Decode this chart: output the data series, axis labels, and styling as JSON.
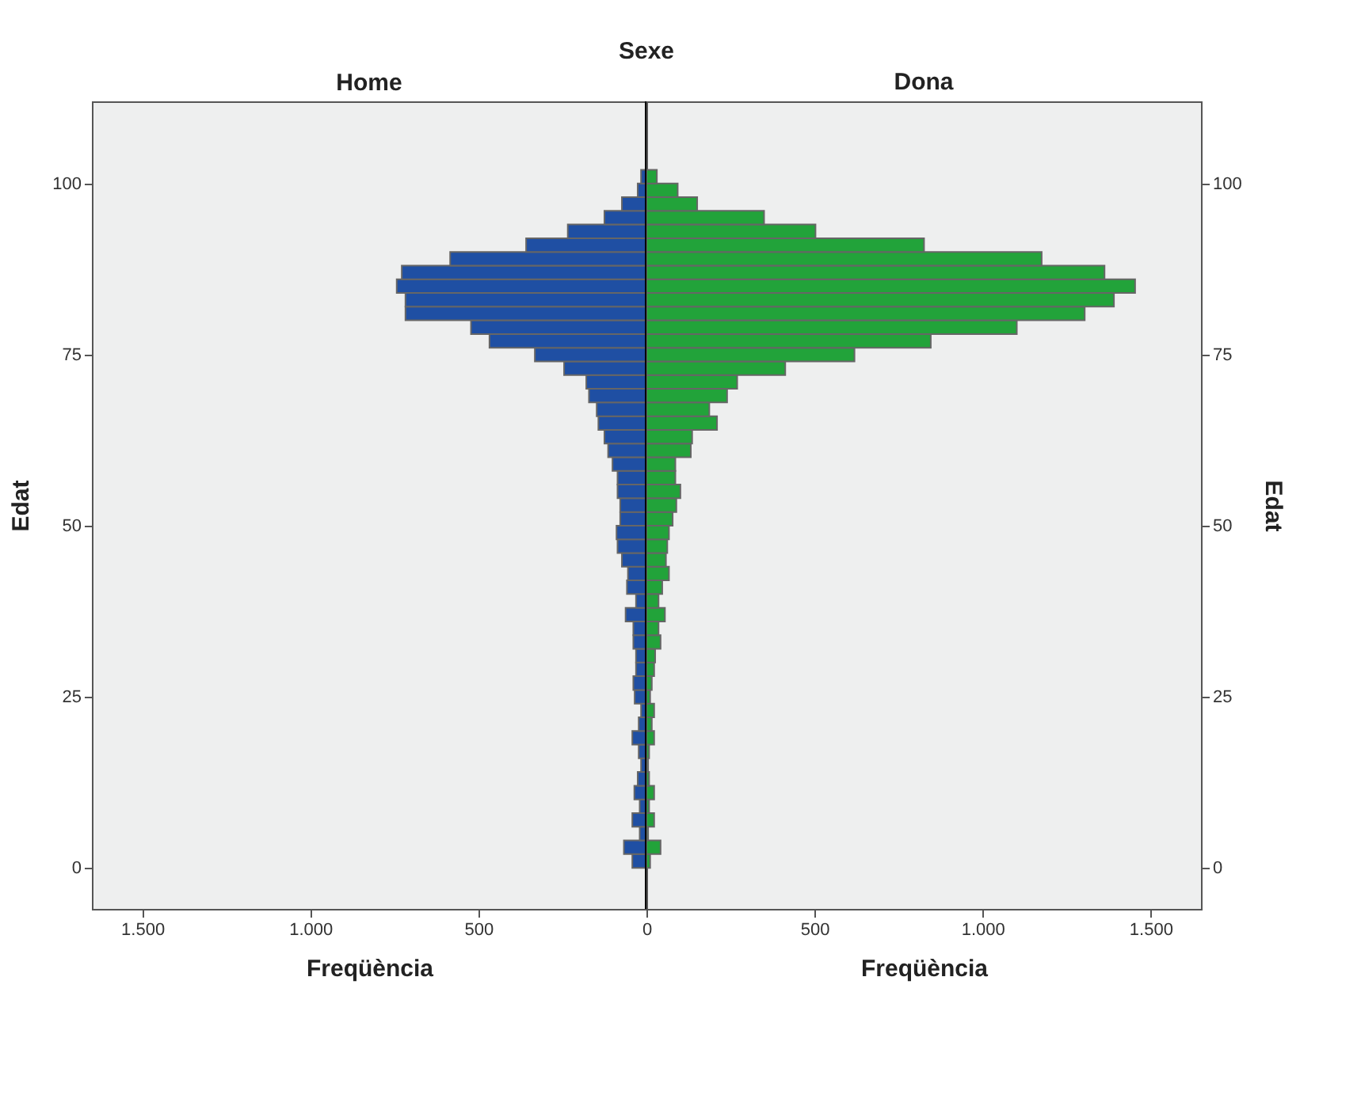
{
  "chart_data": [
    {
      "type": "bar",
      "orientation": "horizontal",
      "title": "Home",
      "annotations": [
        "Sexe"
      ],
      "xlabel": "Freqüència",
      "ylabel": "Edat",
      "x": [
        1,
        3,
        5,
        7,
        9,
        11,
        13,
        15,
        17,
        19,
        21,
        23,
        25,
        27,
        29,
        31,
        33,
        35,
        37,
        39,
        41,
        43,
        45,
        47,
        49,
        51,
        53,
        55,
        57,
        59,
        61,
        63,
        65,
        67,
        69,
        71,
        73,
        75,
        77,
        79,
        81,
        83,
        85,
        87,
        89,
        91,
        93,
        95,
        97,
        99,
        101
      ],
      "series": [
        {
          "color": "#1f4fa3",
          "values": [
            42,
            67,
            20,
            42,
            20,
            36,
            26,
            16,
            23,
            42,
            23,
            16,
            35,
            39,
            31,
            31,
            39,
            39,
            62,
            31,
            58,
            55,
            73,
            86,
            89,
            78,
            78,
            86,
            86,
            101,
            114,
            125,
            143,
            148,
            171,
            179,
            245,
            332,
            467,
            522,
            717,
            717,
            743,
            728,
            584,
            358,
            234,
            125,
            73,
            26,
            16
          ]
        }
      ],
      "xlim": [
        1650,
        0
      ],
      "xticks": [
        {
          "value": 1500,
          "label": "1.500"
        },
        {
          "value": 1000,
          "label": "1.000"
        },
        500,
        {
          "value": 0,
          "label": null
        }
      ],
      "ylim": [
        -6,
        112
      ],
      "yticks": [
        0,
        25,
        50,
        75,
        100
      ],
      "grid": false,
      "legend": false
    },
    {
      "type": "bar",
      "orientation": "horizontal",
      "title": "Dona",
      "xlabel": "Freqüència",
      "ylabel": "Edat",
      "x": [
        1,
        3,
        5,
        7,
        9,
        11,
        13,
        15,
        17,
        19,
        21,
        23,
        25,
        27,
        29,
        31,
        33,
        35,
        37,
        39,
        41,
        43,
        45,
        47,
        49,
        51,
        53,
        55,
        57,
        59,
        61,
        63,
        65,
        67,
        69,
        71,
        73,
        75,
        77,
        79,
        81,
        83,
        85,
        87,
        89,
        91,
        93,
        95,
        97,
        99,
        101
      ],
      "series": [
        {
          "color": "#22a33a",
          "values": [
            11,
            42,
            5,
            23,
            8,
            23,
            8,
            5,
            8,
            23,
            16,
            23,
            11,
            16,
            23,
            26,
            42,
            36,
            55,
            36,
            47,
            67,
            58,
            62,
            67,
            78,
            89,
            101,
            86,
            86,
            132,
            136,
            210,
            187,
            240,
            270,
            413,
            619,
            846,
            1102,
            1304,
            1391,
            1454,
            1363,
            1176,
            826,
            503,
            350,
            151,
            93,
            31
          ]
        }
      ],
      "xlim": [
        0,
        1650
      ],
      "xticks": [
        0,
        500,
        {
          "value": 1000,
          "label": "1.000"
        },
        {
          "value": 1500,
          "label": "1.500"
        }
      ],
      "ylim": [
        -6,
        112
      ],
      "yticks": [
        0,
        25,
        50,
        75,
        100
      ],
      "grid": false,
      "legend": false
    }
  ]
}
